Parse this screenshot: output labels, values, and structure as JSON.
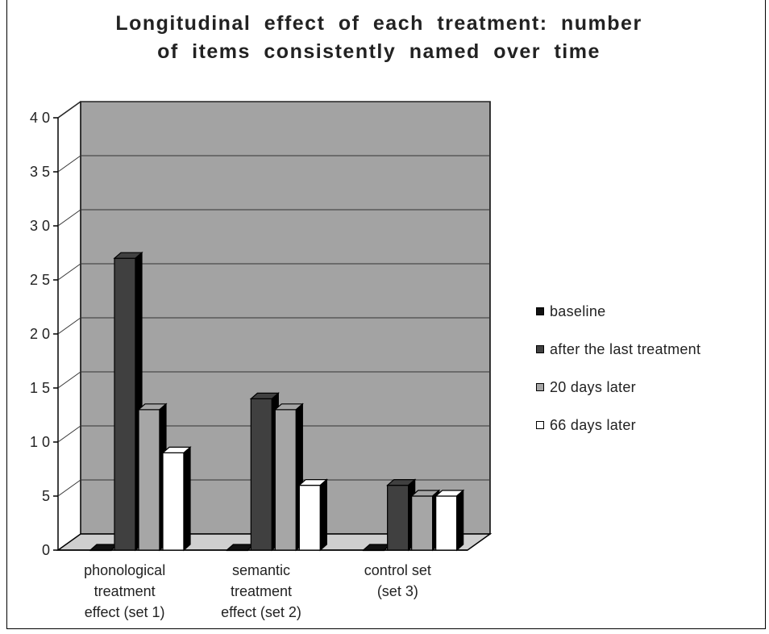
{
  "chart_data": {
    "type": "bar",
    "title_lines": [
      "Longitudinal effect of each treatment: number",
      "of items consistently named over time"
    ],
    "categories": [
      [
        "phonological",
        "treatment",
        "effect (set 1)"
      ],
      [
        "semantic",
        "treatment",
        "effect (set 2)"
      ],
      [
        "control set",
        "(set 3)"
      ]
    ],
    "series": [
      {
        "name": "baseline",
        "values": [
          0,
          0,
          0
        ],
        "color": "#111111"
      },
      {
        "name": "after the last treatment",
        "values": [
          27,
          14,
          6
        ],
        "color": "#404040"
      },
      {
        "name": "20 days later",
        "values": [
          13,
          13,
          5
        ],
        "color": "#a6a6a6"
      },
      {
        "name": "66 days later",
        "values": [
          9,
          6,
          5
        ],
        "color": "#ffffff"
      }
    ],
    "yticks": [
      "0",
      "5",
      "1 0",
      "1 5",
      "2 0",
      "2 5",
      "3 0",
      "3 5",
      "4 0"
    ],
    "ylim": [
      0,
      40
    ],
    "grid": true,
    "legend_position": "right",
    "three_d": true,
    "colors": {
      "wall": "#a3a3a3",
      "floor": "#cfcfcf",
      "frame": "#000000"
    }
  }
}
